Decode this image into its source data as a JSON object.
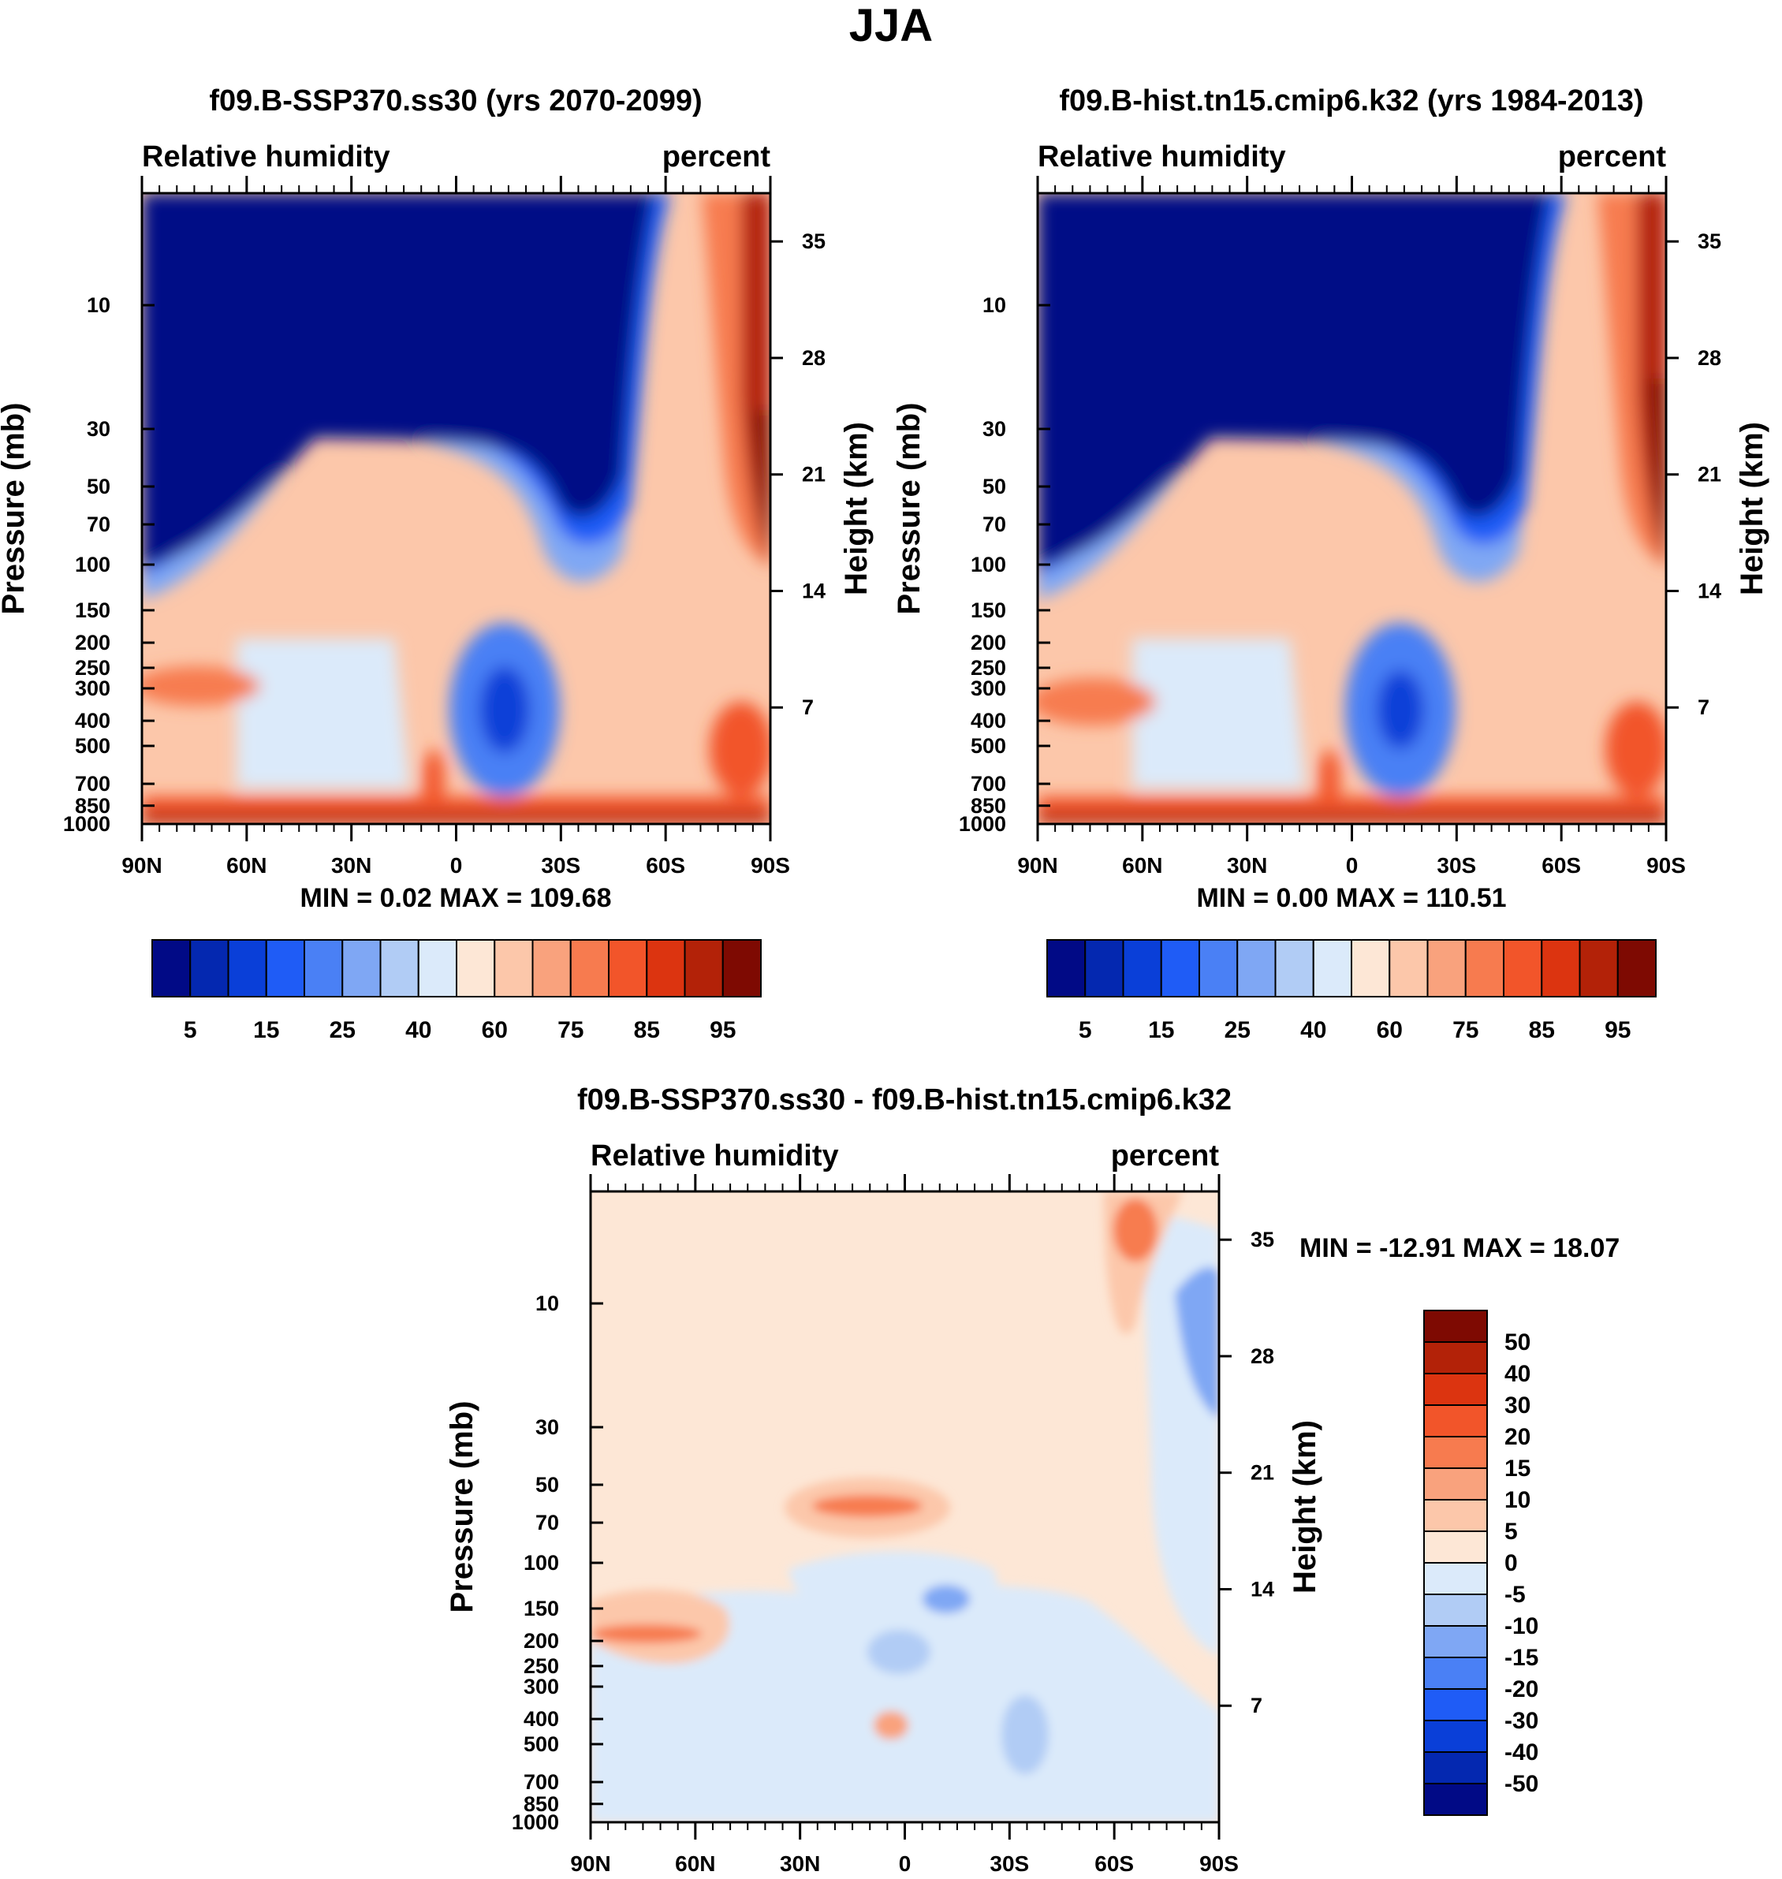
{
  "page_title": "JJA",
  "chart_data": [
    {
      "type": "contour",
      "title": "f09.B-SSP370.ss30 (yrs 2070-2099)",
      "variable": "Relative humidity",
      "units": "percent",
      "ylabel": "Pressure (mb)",
      "ylabel_right": "Height (km)",
      "x_ticks": [
        "90N",
        "60N",
        "30N",
        "0",
        "30S",
        "60S",
        "90S"
      ],
      "pressure_ticks": [
        10,
        30,
        50,
        70,
        100,
        150,
        200,
        250,
        300,
        400,
        500,
        700,
        850,
        1000
      ],
      "height_ticks": [
        35,
        28,
        21,
        14,
        7
      ],
      "stats": "MIN =   0.02  MAX = 109.68",
      "min": 0.02,
      "max": 109.68,
      "colorbar_labels": [
        "5",
        "15",
        "25",
        "40",
        "60",
        "75",
        "85",
        "95"
      ]
    },
    {
      "type": "contour",
      "title": "f09.B-hist.tn15.cmip6.k32 (yrs 1984-2013)",
      "variable": "Relative humidity",
      "units": "percent",
      "ylabel": "Pressure (mb)",
      "ylabel_right": "Height (km)",
      "x_ticks": [
        "90N",
        "60N",
        "30N",
        "0",
        "30S",
        "60S",
        "90S"
      ],
      "pressure_ticks": [
        10,
        30,
        50,
        70,
        100,
        150,
        200,
        250,
        300,
        400,
        500,
        700,
        850,
        1000
      ],
      "height_ticks": [
        35,
        28,
        21,
        14,
        7
      ],
      "stats": "MIN =   0.00  MAX = 110.51",
      "min": 0.0,
      "max": 110.51,
      "colorbar_labels": [
        "5",
        "15",
        "25",
        "40",
        "60",
        "75",
        "85",
        "95"
      ]
    },
    {
      "type": "contour",
      "title": "f09.B-SSP370.ss30 - f09.B-hist.tn15.cmip6.k32",
      "variable": "Relative humidity",
      "units": "percent",
      "ylabel": "Pressure (mb)",
      "ylabel_right": "Height (km)",
      "x_ticks": [
        "90N",
        "60N",
        "30N",
        "0",
        "30S",
        "60S",
        "90S"
      ],
      "pressure_ticks": [
        10,
        30,
        50,
        70,
        100,
        150,
        200,
        250,
        300,
        400,
        500,
        700,
        850,
        1000
      ],
      "height_ticks": [
        35,
        28,
        21,
        14,
        7
      ],
      "stats": "MIN = -12.91  MAX =  18.07",
      "min": -12.91,
      "max": 18.07,
      "colorbar_labels": [
        "50",
        "40",
        "30",
        "20",
        "15",
        "10",
        "5",
        "0",
        "-5",
        "-10",
        "-15",
        "-20",
        "-30",
        "-40",
        "-50"
      ]
    }
  ],
  "colors": {
    "abs_palette": [
      "#010a86",
      "#0428b0",
      "#0a3fd8",
      "#1f5cf6",
      "#4a80f5",
      "#7fa7f4",
      "#b1ccf5",
      "#dbeafa",
      "#fde7d6",
      "#fcc7aa",
      "#f9a27d",
      "#f77b4f",
      "#f2552a",
      "#dc3410",
      "#b32208",
      "#7e0a02"
    ],
    "diff_palette": [
      "#7e0a02",
      "#b32208",
      "#dc3410",
      "#f2552a",
      "#f77b4f",
      "#f9a27d",
      "#fcc7aa",
      "#fde7d6",
      "#dbeafa",
      "#b1ccf5",
      "#7fa7f4",
      "#4a80f5",
      "#1f5cf6",
      "#0a3fd8",
      "#0428b0",
      "#010a86"
    ]
  }
}
